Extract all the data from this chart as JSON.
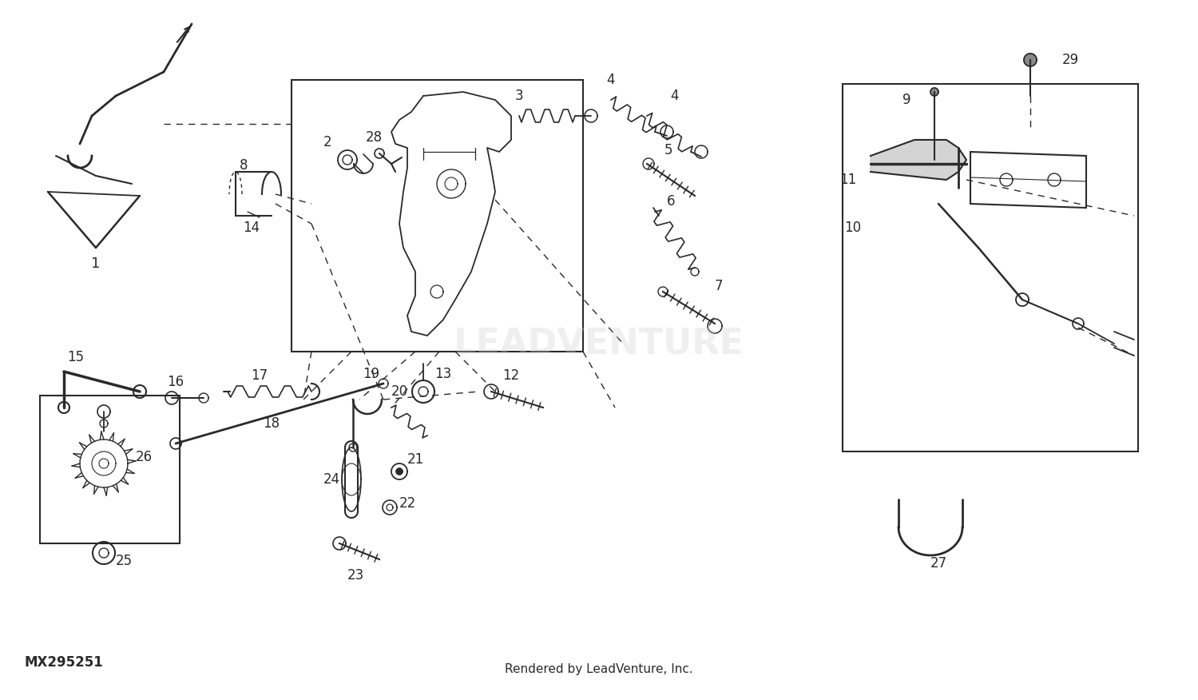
{
  "background_color": "#ffffff",
  "line_color": "#2a2a2a",
  "watermark_color": "#cccccc",
  "part_number": "MX295251",
  "footer_text": "Rendered by LeadVenture, Inc.",
  "fig_width": 15.0,
  "fig_height": 8.76,
  "dpi": 100,
  "label_fontsize": 12,
  "label_bold_fontsize": 13
}
